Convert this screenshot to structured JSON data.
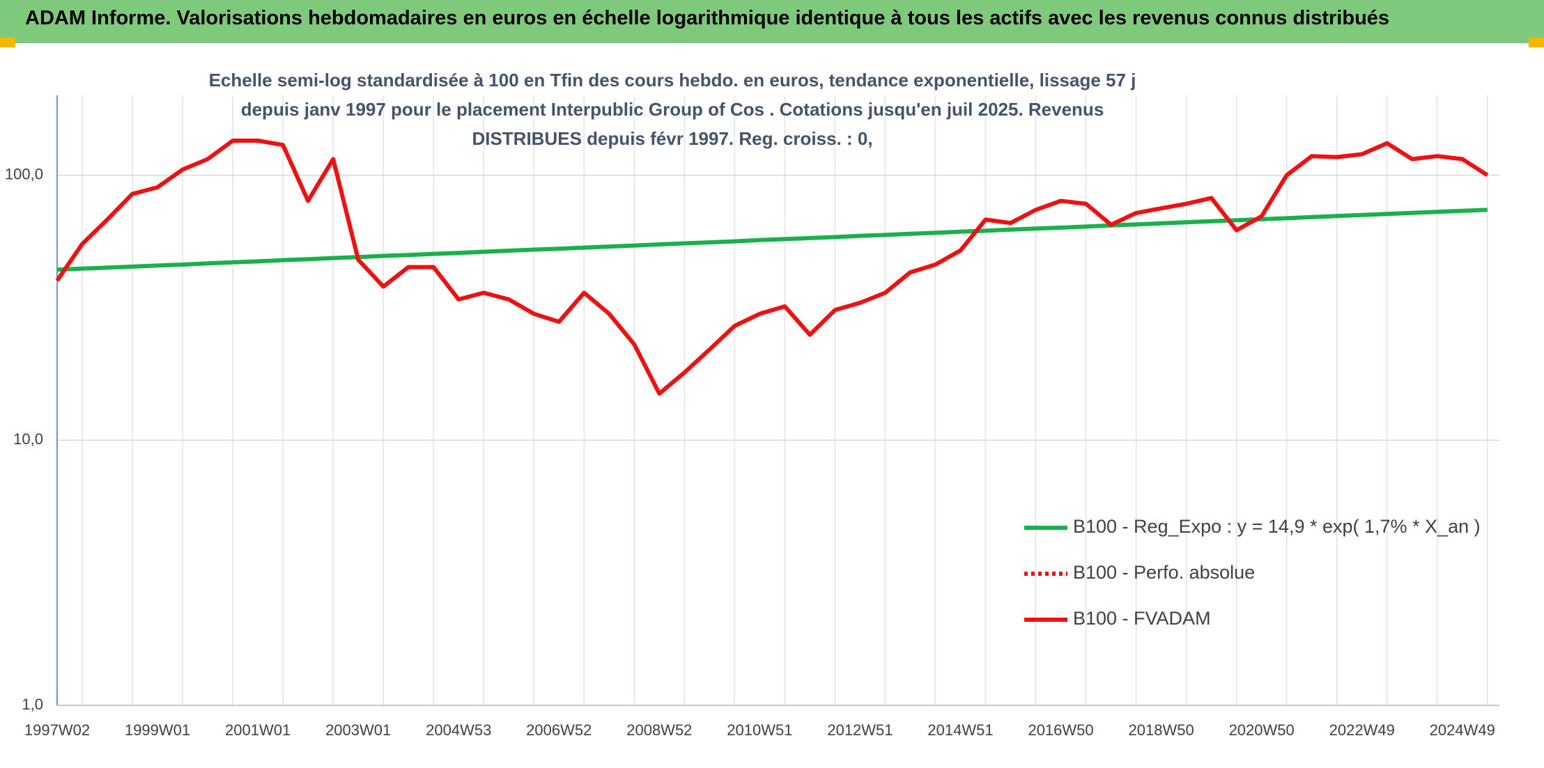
{
  "chart_data": {
    "type": "line",
    "title": "ADAM Informe. Valorisations hebdomadaires en euros en échelle logarithmique identique à tous les actifs avec les revenus connus distribués",
    "subtitle": "Echelle semi-log standardisée à 100 en Tfin des cours hebdo. en euros, tendance exponentielle, lissage 57 j depuis janv 1997 pour le placement Interpublic Group of Cos . Cotations jusqu'en juil 2025. Revenus DISTRIBUES depuis févr 1997. Reg. croiss. : 0,",
    "log_scale": true,
    "grid": true,
    "legend": "bottom-right",
    "categories": [
      "1997W02",
      null,
      null,
      null,
      "1999W01",
      null,
      null,
      null,
      "2001W01",
      null,
      null,
      null,
      "2003W01",
      null,
      null,
      null,
      "2004W53",
      null,
      null,
      null,
      "2006W52",
      null,
      null,
      null,
      "2008W52",
      null,
      null,
      null,
      "2010W51",
      null,
      null,
      null,
      "2012W51",
      null,
      null,
      null,
      "2014W51",
      null,
      null,
      null,
      "2016W50",
      null,
      null,
      null,
      "2018W50",
      null,
      null,
      null,
      "2020W50",
      null,
      null,
      null,
      "2022W49",
      null,
      null,
      null,
      "2024W49",
      null
    ],
    "ylim": [
      1,
      200
    ],
    "yticks": [
      {
        "value": 1,
        "label": "1,0"
      },
      {
        "value": 10,
        "label": "10,0"
      },
      {
        "value": 100,
        "label": "100,0"
      }
    ],
    "series": [
      {
        "name": "B100 - Reg_Expo : y = 14,9 * exp( 1,7% *  X_an )",
        "color": "#1ab04c",
        "style": "solid",
        "values": [
          44.0,
          44.4,
          44.8,
          45.2,
          45.6,
          46.0,
          46.5,
          46.9,
          47.3,
          47.8,
          48.2,
          48.7,
          49.1,
          49.6,
          50.0,
          50.5,
          50.9,
          51.4,
          51.9,
          52.4,
          52.8,
          53.3,
          53.8,
          54.3,
          54.8,
          55.3,
          55.8,
          56.3,
          56.9,
          57.4,
          57.9,
          58.4,
          59.0,
          59.5,
          60.1,
          60.6,
          61.2,
          61.7,
          62.3,
          62.9,
          63.4,
          64.0,
          64.6,
          65.2,
          65.8,
          66.4,
          67.0,
          67.6,
          68.2,
          68.8,
          69.5,
          70.1,
          70.8,
          71.4,
          72.1,
          72.7,
          73.4,
          74.0
        ]
      },
      {
        "name": "B100 - Perfo. absolue",
        "color": "#ee1111",
        "style": "dotted",
        "values": [
          null,
          null,
          null,
          null,
          null,
          null,
          null,
          null,
          null,
          null,
          null,
          null,
          null,
          null,
          null,
          null,
          null,
          null,
          null,
          null,
          null,
          null,
          null,
          null,
          null,
          null,
          null,
          null,
          null,
          null,
          null,
          null,
          null,
          null,
          null,
          null,
          null,
          null,
          null,
          null,
          null,
          null,
          null,
          null,
          null,
          null,
          null,
          null,
          null,
          null,
          null,
          null,
          null,
          null,
          null,
          null,
          null,
          null
        ]
      },
      {
        "name": "B100 - FVADAM",
        "color": "#ee1111",
        "style": "solid",
        "values": [
          40,
          55,
          68,
          85,
          90,
          105,
          115,
          135,
          135,
          130,
          80,
          115,
          48,
          38,
          45,
          45,
          34,
          36,
          34,
          30,
          28,
          36,
          30,
          23,
          15,
          18,
          22,
          27,
          30,
          32,
          25,
          31,
          33,
          36,
          43,
          46,
          52,
          68,
          66,
          74,
          80,
          78,
          65,
          72,
          75,
          78,
          82,
          62,
          70,
          100,
          118,
          117,
          120,
          132,
          115,
          118,
          115,
          100
        ]
      }
    ]
  }
}
